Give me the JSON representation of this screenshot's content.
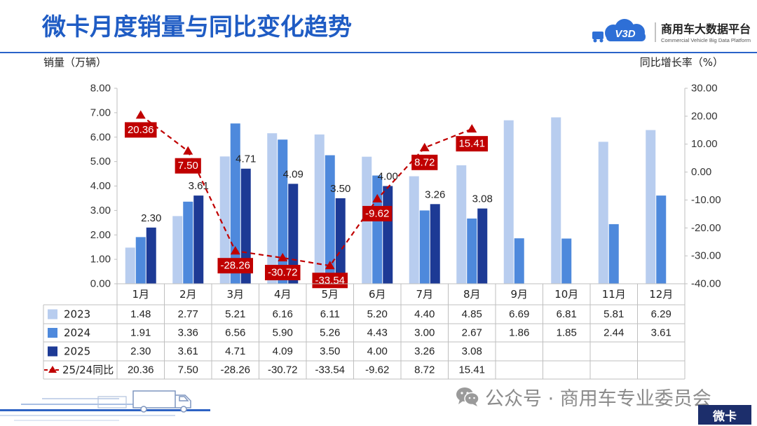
{
  "header": {
    "logo_mark": "V3D",
    "logo_name": "商用车大数据平台",
    "logo_subtitle": "Commercial Vehicle Big Data Platform"
  },
  "footer": {
    "source": "公众号 · 商用车专业委员会",
    "tag": "微卡"
  },
  "icons": {
    "logo": "truck-cloud-icon",
    "footer_source": "wechat-icon",
    "footer_art": "truck-illustration"
  },
  "colors": {
    "title": "#1f5cc4",
    "accent_line": "#2a63c8",
    "tag_background": "#1c2e6b"
  },
  "chart_data": {
    "type": "bar",
    "title": "微卡月度销量与同比变化趋势",
    "ylabel": "销量（万辆）",
    "y2label": "同比增长率（%）",
    "ylim": [
      0,
      8
    ],
    "y2lim": [
      -40,
      30
    ],
    "yticks": [
      "8.00",
      "7.00",
      "6.00",
      "5.00",
      "4.00",
      "3.00",
      "2.00",
      "1.00",
      "0.00"
    ],
    "y2ticks": [
      "30.00",
      "20.00",
      "10.00",
      "0.00",
      "-10.00",
      "-20.00",
      "-30.00",
      "-40.00"
    ],
    "grid": false,
    "legend": "bottom-table",
    "categories": [
      "1月",
      "2月",
      "3月",
      "4月",
      "5月",
      "6月",
      "7月",
      "8月",
      "9月",
      "10月",
      "11月",
      "12月"
    ],
    "series": [
      {
        "name": "2023",
        "type": "bar",
        "axis": "left",
        "color": "#b8cdef",
        "values": [
          1.48,
          2.77,
          5.21,
          6.16,
          6.11,
          5.2,
          4.4,
          4.85,
          6.69,
          6.81,
          5.81,
          6.29
        ]
      },
      {
        "name": "2024",
        "type": "bar",
        "axis": "left",
        "color": "#4e89dc",
        "values": [
          1.91,
          3.36,
          6.56,
          5.9,
          5.26,
          4.43,
          3.0,
          2.67,
          1.86,
          1.85,
          2.44,
          3.61
        ]
      },
      {
        "name": "2025",
        "type": "bar",
        "axis": "left",
        "color": "#1d3a95",
        "data_labels": true,
        "values": [
          2.3,
          3.61,
          4.71,
          4.09,
          3.5,
          4.0,
          3.26,
          3.08,
          null,
          null,
          null,
          null
        ]
      },
      {
        "name": "25/24同比",
        "type": "line",
        "axis": "right",
        "color": "#c00000",
        "data_labels": true,
        "marker": "triangle",
        "dash": true,
        "values": [
          20.36,
          7.5,
          -28.26,
          -30.72,
          -33.54,
          -9.62,
          8.72,
          15.41,
          null,
          null,
          null,
          null
        ]
      }
    ]
  }
}
